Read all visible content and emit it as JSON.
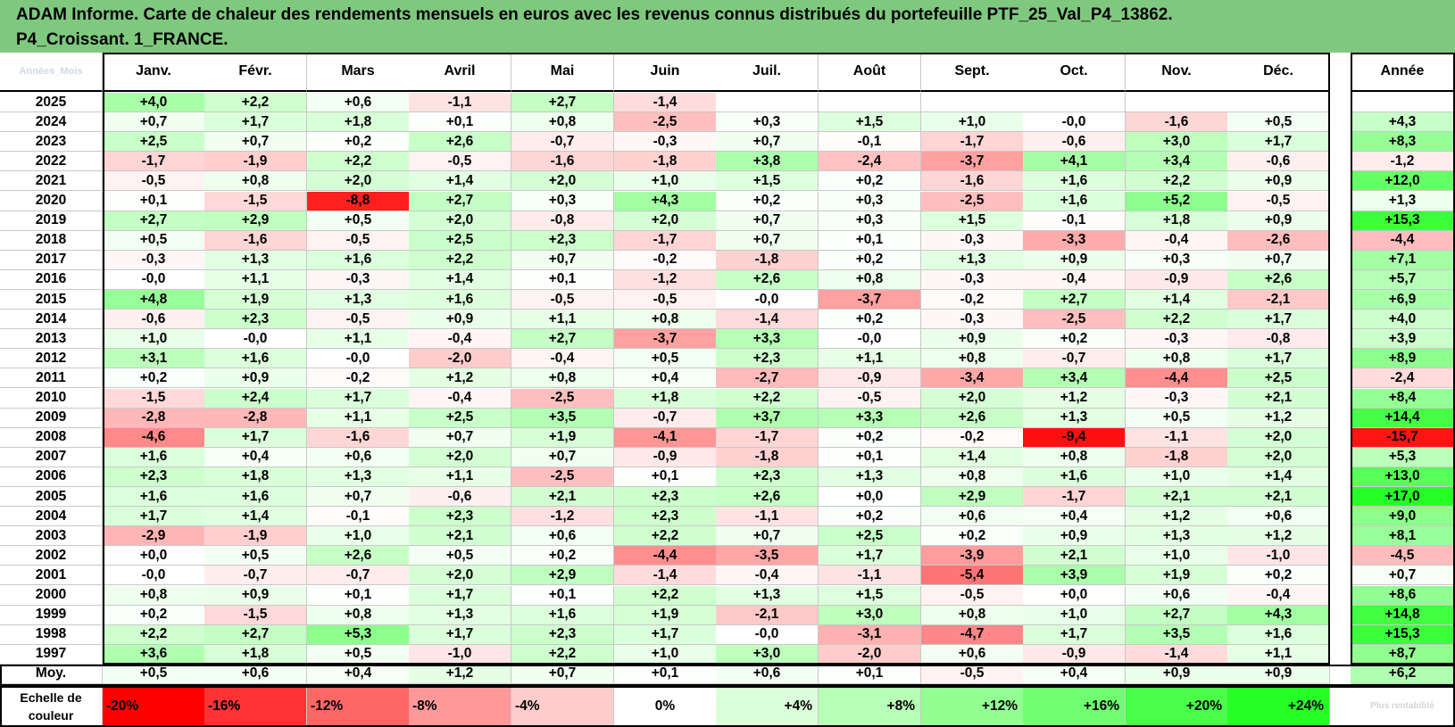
{
  "title_lines": [
    "ADAM Informe. Carte de chaleur des rendements mensuels en euros avec les revenus connus distribués du portefeuille PTF_25_Val_P4_13862.",
    "P4_Croissant. 1_FRANCE."
  ],
  "chart_data": {
    "type": "heatmap",
    "title": "ADAM Informe. Carte de chaleur des rendements mensuels en euros avec les revenus connus distribués du portefeuille PTF_25_Val_P4_13862. P4_Croissant. 1_FRANCE.",
    "year_header": "Années_Mois",
    "columns": [
      "Janv.",
      "Févr.",
      "Mars",
      "Avril",
      "Mai",
      "Juin",
      "Juil.",
      "Août",
      "Sept.",
      "Oct.",
      "Nov.",
      "Déc."
    ],
    "annual_header": "Année",
    "rows": [
      {
        "year": "2025",
        "values": [
          "+4,0",
          "+2,2",
          "+0,6",
          "-1,1",
          "+2,7",
          "-1,4",
          "",
          "",
          "",
          "",
          "",
          ""
        ],
        "annual": ""
      },
      {
        "year": "2024",
        "values": [
          "+0,7",
          "+1,7",
          "+1,8",
          "+0,1",
          "+0,8",
          "-2,5",
          "+0,3",
          "+1,5",
          "+1,0",
          "-0,0",
          "-1,6",
          "+0,5"
        ],
        "annual": "+4,3"
      },
      {
        "year": "2023",
        "values": [
          "+2,5",
          "+0,7",
          "+0,2",
          "+2,6",
          "-0,7",
          "-0,3",
          "+0,7",
          "-0,1",
          "-1,7",
          "-0,6",
          "+3,0",
          "+1,7"
        ],
        "annual": "+8,3"
      },
      {
        "year": "2022",
        "values": [
          "-1,7",
          "-1,9",
          "+2,2",
          "-0,5",
          "-1,6",
          "-1,8",
          "+3,8",
          "-2,4",
          "-3,7",
          "+4,1",
          "+3,4",
          "-0,6"
        ],
        "annual": "-1,2"
      },
      {
        "year": "2021",
        "values": [
          "-0,5",
          "+0,8",
          "+2,0",
          "+1,4",
          "+2,0",
          "+1,0",
          "+1,5",
          "+0,2",
          "-1,6",
          "+1,6",
          "+2,2",
          "+0,9"
        ],
        "annual": "+12,0"
      },
      {
        "year": "2020",
        "values": [
          "+0,1",
          "-1,5",
          "-8,8",
          "+2,7",
          "+0,3",
          "+4,3",
          "+0,2",
          "+0,3",
          "-2,5",
          "+1,6",
          "+5,2",
          "-0,5"
        ],
        "annual": "+1,3"
      },
      {
        "year": "2019",
        "values": [
          "+2,7",
          "+2,9",
          "+0,5",
          "+2,0",
          "-0,8",
          "+2,0",
          "+0,7",
          "+0,3",
          "+1,5",
          "-0,1",
          "+1,8",
          "+0,9"
        ],
        "annual": "+15,3"
      },
      {
        "year": "2018",
        "values": [
          "+0,5",
          "-1,6",
          "-0,5",
          "+2,5",
          "+2,3",
          "-1,7",
          "+0,7",
          "+0,1",
          "-0,3",
          "-3,3",
          "-0,4",
          "-2,6"
        ],
        "annual": "-4,4"
      },
      {
        "year": "2017",
        "values": [
          "-0,3",
          "+1,3",
          "+1,6",
          "+2,2",
          "+0,7",
          "-0,2",
          "-1,8",
          "+0,2",
          "+1,3",
          "+0,9",
          "+0,3",
          "+0,7"
        ],
        "annual": "+7,1"
      },
      {
        "year": "2016",
        "values": [
          "-0,0",
          "+1,1",
          "-0,3",
          "+1,4",
          "+0,1",
          "-1,2",
          "+2,6",
          "+0,8",
          "-0,3",
          "-0,4",
          "-0,9",
          "+2,6"
        ],
        "annual": "+5,7"
      },
      {
        "year": "2015",
        "values": [
          "+4,8",
          "+1,9",
          "+1,3",
          "+1,6",
          "-0,5",
          "-0,5",
          "-0,0",
          "-3,7",
          "-0,2",
          "+2,7",
          "+1,4",
          "-2,1"
        ],
        "annual": "+6,9"
      },
      {
        "year": "2014",
        "values": [
          "-0,6",
          "+2,3",
          "-0,5",
          "+0,9",
          "+1,1",
          "+0,8",
          "-1,4",
          "+0,2",
          "-0,3",
          "-2,5",
          "+2,2",
          "+1,7"
        ],
        "annual": "+4,0"
      },
      {
        "year": "2013",
        "values": [
          "+1,0",
          "-0,0",
          "+1,1",
          "-0,4",
          "+2,7",
          "-3,7",
          "+3,3",
          "-0,0",
          "+0,9",
          "+0,2",
          "-0,3",
          "-0,8"
        ],
        "annual": "+3,9"
      },
      {
        "year": "2012",
        "values": [
          "+3,1",
          "+1,6",
          "-0,0",
          "-2,0",
          "-0,4",
          "+0,5",
          "+2,3",
          "+1,1",
          "+0,8",
          "-0,7",
          "+0,8",
          "+1,7"
        ],
        "annual": "+8,9"
      },
      {
        "year": "2011",
        "values": [
          "+0,2",
          "+0,9",
          "-0,2",
          "+1,2",
          "+0,8",
          "+0,4",
          "-2,7",
          "-0,9",
          "-3,4",
          "+3,4",
          "-4,4",
          "+2,5"
        ],
        "annual": "-2,4"
      },
      {
        "year": "2010",
        "values": [
          "-1,5",
          "+2,4",
          "+1,7",
          "-0,4",
          "-2,5",
          "+1,8",
          "+2,2",
          "-0,5",
          "+2,0",
          "+1,2",
          "-0,3",
          "+2,1"
        ],
        "annual": "+8,4"
      },
      {
        "year": "2009",
        "values": [
          "-2,8",
          "-2,8",
          "+1,1",
          "+2,5",
          "+3,5",
          "-0,7",
          "+3,7",
          "+3,3",
          "+2,6",
          "+1,3",
          "+0,5",
          "+1,2"
        ],
        "annual": "+14,4"
      },
      {
        "year": "2008",
        "values": [
          "-4,6",
          "+1,7",
          "-1,6",
          "+0,7",
          "+1,9",
          "-4,1",
          "-1,7",
          "+0,2",
          "-0,2",
          "-9,4",
          "-1,1",
          "+2,0"
        ],
        "annual": "-15,7"
      },
      {
        "year": "2007",
        "values": [
          "+1,6",
          "+0,4",
          "+0,6",
          "+2,0",
          "+0,7",
          "-0,9",
          "-1,8",
          "+0,1",
          "+1,4",
          "+0,8",
          "-1,8",
          "+2,0"
        ],
        "annual": "+5,3"
      },
      {
        "year": "2006",
        "values": [
          "+2,3",
          "+1,8",
          "+1,3",
          "+1,1",
          "-2,5",
          "+0,1",
          "+2,3",
          "+1,3",
          "+0,8",
          "+1,6",
          "+1,0",
          "+1,4"
        ],
        "annual": "+13,0"
      },
      {
        "year": "2005",
        "values": [
          "+1,6",
          "+1,6",
          "+0,7",
          "-0,6",
          "+2,1",
          "+2,3",
          "+2,6",
          "+0,0",
          "+2,9",
          "-1,7",
          "+2,1",
          "+2,1"
        ],
        "annual": "+17,0"
      },
      {
        "year": "2004",
        "values": [
          "+1,7",
          "+1,4",
          "-0,1",
          "+2,3",
          "-1,2",
          "+2,3",
          "-1,1",
          "+0,2",
          "+0,6",
          "+0,4",
          "+1,2",
          "+0,6"
        ],
        "annual": "+9,0"
      },
      {
        "year": "2003",
        "values": [
          "-2,9",
          "-1,9",
          "+1,0",
          "+2,1",
          "+0,6",
          "+2,2",
          "+0,7",
          "+2,5",
          "+0,2",
          "+0,9",
          "+1,3",
          "+1,2"
        ],
        "annual": "+8,1"
      },
      {
        "year": "2002",
        "values": [
          "+0,0",
          "+0,5",
          "+2,6",
          "+0,5",
          "+0,2",
          "-4,4",
          "-3,5",
          "+1,7",
          "-3,9",
          "+2,1",
          "+1,0",
          "-1,0"
        ],
        "annual": "-4,5"
      },
      {
        "year": "2001",
        "values": [
          "-0,0",
          "-0,7",
          "-0,7",
          "+2,0",
          "+2,9",
          "-1,4",
          "-0,4",
          "-1,1",
          "-5,4",
          "+3,9",
          "+1,9",
          "+0,2"
        ],
        "annual": "+0,7"
      },
      {
        "year": "2000",
        "values": [
          "+0,8",
          "+0,9",
          "+0,1",
          "+1,7",
          "+0,1",
          "+2,2",
          "+1,3",
          "+1,5",
          "-0,5",
          "+0,0",
          "+0,6",
          "-0,4"
        ],
        "annual": "+8,6"
      },
      {
        "year": "1999",
        "values": [
          "+0,2",
          "-1,5",
          "+0,8",
          "+1,3",
          "+1,6",
          "+1,9",
          "-2,1",
          "+3,0",
          "+0,8",
          "+1,0",
          "+2,7",
          "+4,3"
        ],
        "annual": "+14,8"
      },
      {
        "year": "1998",
        "values": [
          "+2,2",
          "+2,7",
          "+5,3",
          "+1,7",
          "+2,3",
          "+1,7",
          "-0,0",
          "-3,1",
          "-4,7",
          "+1,7",
          "+3,5",
          "+1,6"
        ],
        "annual": "+15,3"
      },
      {
        "year": "1997",
        "values": [
          "+3,6",
          "+1,8",
          "+0,5",
          "-1,0",
          "+2,2",
          "+1,0",
          "+3,0",
          "-2,0",
          "+0,6",
          "-0,9",
          "-1,4",
          "+1,1"
        ],
        "annual": "+8,7"
      }
    ],
    "average": {
      "label": "Moy.",
      "values": [
        "+0,5",
        "+0,6",
        "+0,4",
        "+1,2",
        "+0,7",
        "+0,1",
        "+0,6",
        "+0,1",
        "-0,5",
        "+0,4",
        "+0,9",
        "+0,9"
      ],
      "annual": "+6,2"
    },
    "scale": {
      "label": "Echelle de couleur",
      "steps": [
        "-20%",
        "-16%",
        "-12%",
        "-8%",
        "-4%",
        "0%",
        "+4%",
        "+8%",
        "+12%",
        "+16%",
        "+20%",
        "+24%"
      ],
      "trailing_label": "Plus rentabilité"
    },
    "colors": {
      "negative": "#ff0000",
      "positive": "#00ff00",
      "neutral": "#ffffff",
      "title_bg": "#7fc97f"
    }
  }
}
